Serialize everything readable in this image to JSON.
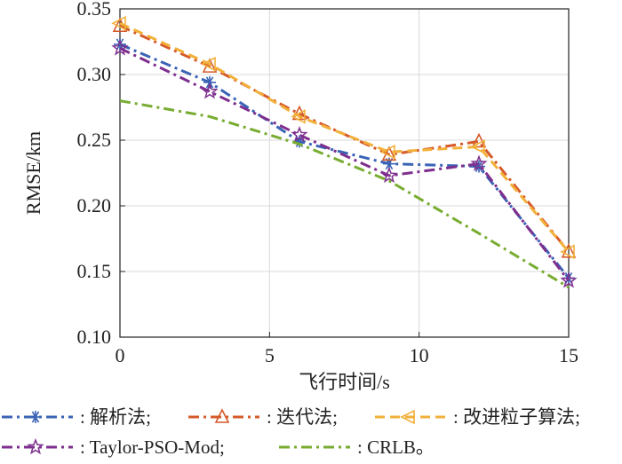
{
  "chart_data": {
    "type": "line",
    "xlabel": "飞行时间/s",
    "ylabel": "RMSE/km",
    "xlim": [
      0,
      15
    ],
    "ylim": [
      0.1,
      0.35
    ],
    "x_ticks": [
      "0",
      "5",
      "10",
      "15"
    ],
    "y_ticks": [
      "0.10",
      "0.15",
      "0.20",
      "0.25",
      "0.30",
      "0.35"
    ],
    "grid": true,
    "legend_position": "bottom",
    "x": [
      0,
      3,
      6,
      9,
      12,
      15
    ],
    "series": [
      {
        "name": ": 解析法;",
        "values": [
          0.323,
          0.294,
          0.249,
          0.232,
          0.23,
          0.145
        ],
        "color": "#3a63b6",
        "marker": "asterisk",
        "dash": "dashdot"
      },
      {
        "name": ": 迭代法;",
        "values": [
          0.337,
          0.306,
          0.27,
          0.239,
          0.249,
          0.165
        ],
        "color": "#d65a2a",
        "marker": "triangle",
        "dash": "dashdot"
      },
      {
        "name": ": 改进粒子算法;",
        "values": [
          0.339,
          0.308,
          0.268,
          0.241,
          0.245,
          0.165
        ],
        "color": "#f2b03a",
        "marker": "triangle-left",
        "dash": "dashed"
      },
      {
        "name": ": Taylor-PSO-Mod;",
        "values": [
          0.32,
          0.287,
          0.254,
          0.223,
          0.232,
          0.143
        ],
        "color": "#7e2f8e",
        "marker": "star",
        "dash": "dashdot"
      },
      {
        "name": ": CRLB。",
        "values": [
          0.28,
          0.268,
          0.247,
          0.219,
          0.179,
          0.138
        ],
        "color": "#77ac30",
        "marker": "none",
        "dash": "dashdot"
      }
    ]
  }
}
